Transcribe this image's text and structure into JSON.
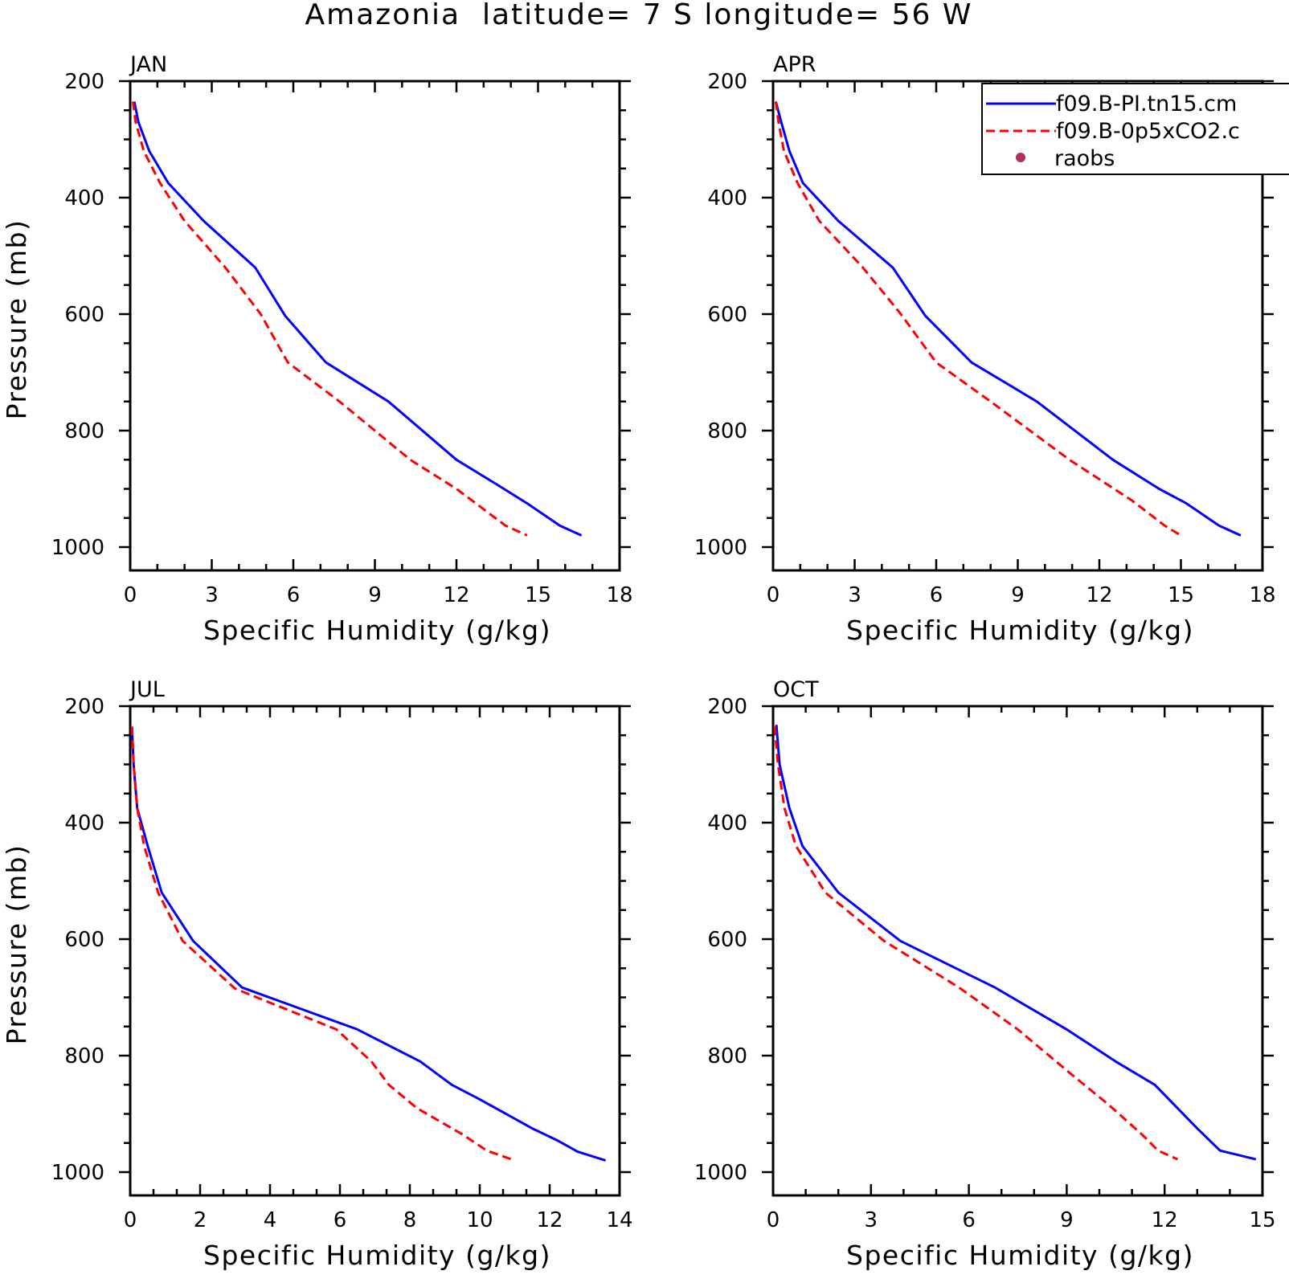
{
  "title": "Amazonia  latitude= 7 S longitude= 56 W",
  "legend": {
    "items": [
      {
        "label": "f09.B-PI.tn15.cm",
        "color": "#0000ff",
        "style": "solid"
      },
      {
        "label": "f09.B-0p5xCO2.c",
        "color": "#ff0000",
        "style": "dashed"
      },
      {
        "label": "raobs",
        "color": "#b03060",
        "style": "dot"
      }
    ]
  },
  "chart_data": [
    {
      "type": "line",
      "panel": "JAN",
      "xlabel": "Specific Humidity (g/kg)",
      "ylabel": "Pressure (mb)",
      "xlim": [
        0,
        18
      ],
      "ylim": [
        1000,
        200
      ],
      "y_inverted": true,
      "xticks": [
        "0",
        "3",
        "6",
        "9",
        "12",
        "15",
        "18"
      ],
      "yticks": [
        "200",
        "400",
        "600",
        "800",
        "1000"
      ],
      "series": [
        {
          "name": "f09.B-PI.tn15.cm",
          "color": "#0000ff",
          "style": "solid",
          "x": [
            0.15,
            0.3,
            0.7,
            1.4,
            2.7,
            4.6,
            5.7,
            7.2,
            9.5,
            12.0,
            13.5,
            14.6,
            15.8,
            16.6
          ],
          "y": [
            235,
            270,
            320,
            375,
            440,
            520,
            603,
            683,
            750,
            850,
            893,
            925,
            963,
            980
          ]
        },
        {
          "name": "f09.B-0p5xCO2.c",
          "color": "#ff0000",
          "style": "dashed",
          "x": [
            0.1,
            0.2,
            0.5,
            1.1,
            2.0,
            3.5,
            4.8,
            5.8,
            7.7,
            10.3,
            12.0,
            13.8,
            14.6
          ],
          "y": [
            235,
            270,
            320,
            375,
            440,
            520,
            600,
            683,
            750,
            850,
            900,
            963,
            980
          ]
        }
      ]
    },
    {
      "type": "line",
      "panel": "APR",
      "xlabel": "Specific Humidity (g/kg)",
      "ylabel": "",
      "xlim": [
        0,
        18
      ],
      "ylim": [
        1000,
        200
      ],
      "y_inverted": true,
      "xticks": [
        "0",
        "3",
        "6",
        "9",
        "12",
        "15",
        "18"
      ],
      "yticks": [
        "200",
        "400",
        "600",
        "800",
        "1000"
      ],
      "series": [
        {
          "name": "f09.B-PI.tn15.cm",
          "color": "#0000ff",
          "style": "solid",
          "x": [
            0.1,
            0.3,
            0.6,
            1.1,
            2.4,
            4.4,
            5.6,
            7.3,
            9.7,
            12.5,
            14.2,
            15.2,
            16.4,
            17.2
          ],
          "y": [
            235,
            270,
            320,
            375,
            440,
            520,
            603,
            683,
            750,
            850,
            900,
            925,
            963,
            980
          ]
        },
        {
          "name": "f09.B-0p5xCO2.c",
          "color": "#ff0000",
          "style": "dashed",
          "x": [
            0.1,
            0.2,
            0.4,
            0.9,
            1.7,
            3.3,
            4.7,
            6.0,
            8.0,
            10.9,
            13.2,
            14.4,
            15.0
          ],
          "y": [
            235,
            270,
            320,
            375,
            440,
            520,
            600,
            683,
            750,
            850,
            920,
            963,
            980
          ]
        }
      ]
    },
    {
      "type": "line",
      "panel": "JUL",
      "xlabel": "Specific Humidity (g/kg)",
      "ylabel": "Pressure (mb)",
      "xlim": [
        0,
        14
      ],
      "ylim": [
        1000,
        200
      ],
      "y_inverted": true,
      "xticks": [
        "0",
        "2",
        "4",
        "6",
        "8",
        "10",
        "12",
        "14"
      ],
      "yticks": [
        "200",
        "400",
        "600",
        "800",
        "1000"
      ],
      "series": [
        {
          "name": "f09.B-PI.tn15.cm",
          "color": "#0000ff",
          "style": "solid",
          "x": [
            0.05,
            0.1,
            0.2,
            0.5,
            0.9,
            1.8,
            3.2,
            6.5,
            8.3,
            9.2,
            10.0,
            11.5,
            12.2,
            12.8,
            13.6
          ],
          "y": [
            235,
            300,
            375,
            440,
            520,
            603,
            683,
            755,
            810,
            850,
            875,
            925,
            945,
            965,
            980
          ]
        },
        {
          "name": "f09.B-0p5xCO2.c",
          "color": "#ff0000",
          "style": "dashed",
          "x": [
            0.05,
            0.1,
            0.2,
            0.4,
            0.8,
            1.5,
            3.0,
            5.9,
            6.9,
            7.4,
            8.2,
            9.5,
            10.2,
            11.0
          ],
          "y": [
            235,
            300,
            375,
            440,
            520,
            603,
            685,
            755,
            810,
            850,
            890,
            935,
            963,
            980
          ]
        }
      ]
    },
    {
      "type": "line",
      "panel": "OCT",
      "xlabel": "Specific Humidity (g/kg)",
      "ylabel": "",
      "xlim": [
        0,
        15
      ],
      "ylim": [
        1000,
        200
      ],
      "y_inverted": true,
      "xticks": [
        "0",
        "3",
        "6",
        "9",
        "12",
        "15"
      ],
      "yticks": [
        "200",
        "400",
        "600",
        "800",
        "1000"
      ],
      "series": [
        {
          "name": "f09.B-PI.tn15.cm",
          "color": "#0000ff",
          "style": "solid",
          "x": [
            0.1,
            0.2,
            0.5,
            0.9,
            2.0,
            3.9,
            6.8,
            9.0,
            10.5,
            11.7,
            13.0,
            13.7,
            14.8
          ],
          "y": [
            232,
            300,
            375,
            440,
            520,
            603,
            683,
            755,
            810,
            850,
            925,
            963,
            978
          ]
        },
        {
          "name": "f09.B-0p5xCO2.c",
          "color": "#ff0000",
          "style": "dashed",
          "x": [
            0.05,
            0.15,
            0.35,
            0.7,
            1.6,
            3.4,
            5.7,
            7.5,
            9.1,
            10.3,
            11.3,
            11.8,
            12.4
          ],
          "y": [
            235,
            300,
            375,
            440,
            520,
            603,
            683,
            755,
            830,
            885,
            935,
            963,
            978
          ]
        }
      ]
    }
  ]
}
